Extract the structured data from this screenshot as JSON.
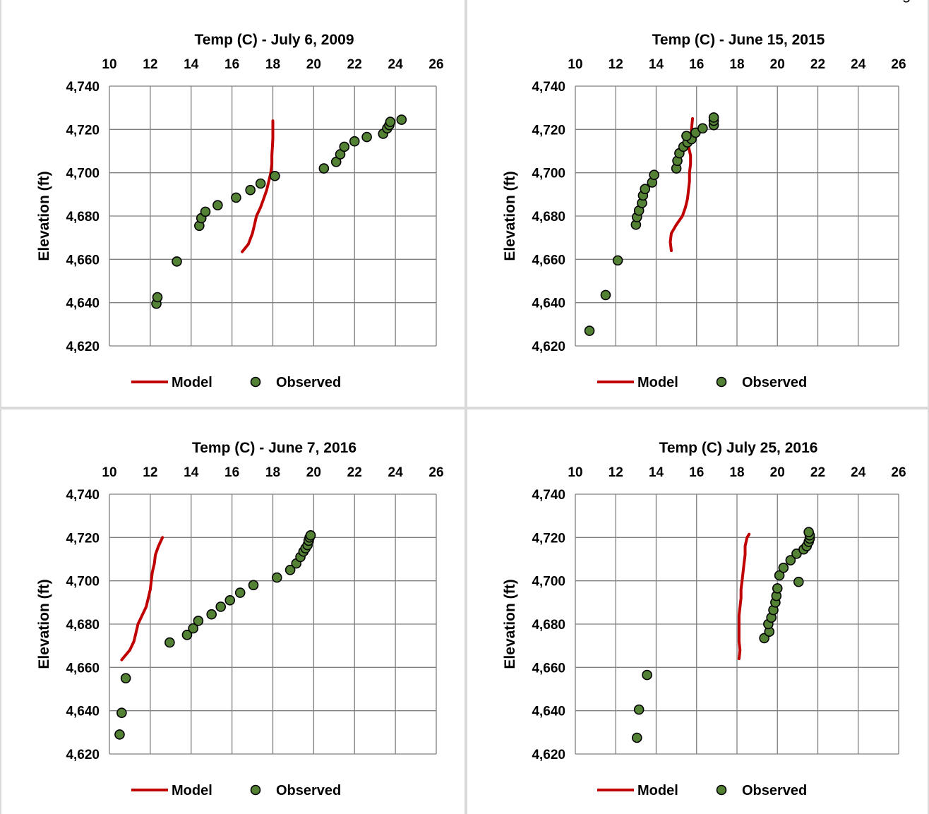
{
  "colors": {
    "model": "#c00000",
    "observed_fill": "#548235",
    "observed_stroke": "#000000",
    "grid": "#7f7f7f",
    "text": "#000000",
    "panel_border": "#d9d9d9"
  },
  "top_right_text": "g",
  "chart_data": [
    {
      "type": "scatter",
      "title": "Temp (C) - July 6, 2009",
      "xlabel": "",
      "ylabel": "Elevation (ft)",
      "xlim": [
        10,
        26
      ],
      "ylim": [
        4620,
        4740
      ],
      "x_ticks": [
        "10",
        "12",
        "14",
        "16",
        "18",
        "20",
        "22",
        "24",
        "26"
      ],
      "y_ticks": [
        "4,740",
        "4,720",
        "4,700",
        "4,680",
        "4,660",
        "4,640",
        "4,620"
      ],
      "x_axis_position": "top",
      "grid": true,
      "legend": [
        "Model",
        "Observed"
      ],
      "legend_position": "bottom",
      "series": [
        {
          "name": "Model",
          "kind": "line",
          "points": [
            [
              16.5,
              4663.5
            ],
            [
              16.8,
              4667
            ],
            [
              17.0,
              4672
            ],
            [
              17.1,
              4676
            ],
            [
              17.2,
              4680
            ],
            [
              17.4,
              4684
            ],
            [
              17.55,
              4688
            ],
            [
              17.7,
              4692
            ],
            [
              17.8,
              4696
            ],
            [
              17.9,
              4700
            ],
            [
              17.95,
              4704
            ],
            [
              17.95,
              4708
            ],
            [
              17.98,
              4712
            ],
            [
              18.0,
              4716
            ],
            [
              18.0,
              4720
            ],
            [
              18.0,
              4724
            ]
          ]
        },
        {
          "name": "Observed",
          "kind": "scatter",
          "points": [
            [
              12.3,
              4639.5
            ],
            [
              12.35,
              4642.5
            ],
            [
              13.3,
              4659
            ],
            [
              14.4,
              4675.5
            ],
            [
              14.5,
              4679
            ],
            [
              14.7,
              4682
            ],
            [
              15.3,
              4685
            ],
            [
              16.2,
              4688.5
            ],
            [
              16.9,
              4692
            ],
            [
              17.4,
              4695
            ],
            [
              18.1,
              4698.5
            ],
            [
              20.5,
              4702
            ],
            [
              21.1,
              4705
            ],
            [
              21.3,
              4708.5
            ],
            [
              21.5,
              4712
            ],
            [
              22.0,
              4714.5
            ],
            [
              22.6,
              4716.5
            ],
            [
              23.4,
              4718
            ],
            [
              23.6,
              4720.5
            ],
            [
              23.7,
              4722
            ],
            [
              23.75,
              4723.5
            ],
            [
              24.3,
              4724.5
            ]
          ]
        }
      ]
    },
    {
      "type": "scatter",
      "title": "Temp (C) - June 15, 2015",
      "xlabel": "",
      "ylabel": "Elevation (ft)",
      "xlim": [
        10,
        26
      ],
      "ylim": [
        4620,
        4740
      ],
      "x_ticks": [
        "10",
        "12",
        "14",
        "16",
        "18",
        "20",
        "22",
        "24",
        "26"
      ],
      "y_ticks": [
        "4,740",
        "4,720",
        "4,700",
        "4,680",
        "4,660",
        "4,640",
        "4,620"
      ],
      "x_axis_position": "top",
      "grid": true,
      "legend": [
        "Model",
        "Observed"
      ],
      "legend_position": "bottom",
      "series": [
        {
          "name": "Model",
          "kind": "line",
          "points": [
            [
              14.75,
              4664
            ],
            [
              14.7,
              4668
            ],
            [
              14.75,
              4672
            ],
            [
              15.0,
              4676
            ],
            [
              15.3,
              4680
            ],
            [
              15.45,
              4684
            ],
            [
              15.55,
              4688
            ],
            [
              15.6,
              4692
            ],
            [
              15.65,
              4696
            ],
            [
              15.65,
              4700
            ],
            [
              15.7,
              4704
            ],
            [
              15.7,
              4708
            ],
            [
              15.6,
              4712
            ],
            [
              15.7,
              4716
            ],
            [
              15.75,
              4720
            ],
            [
              15.8,
              4725
            ]
          ]
        },
        {
          "name": "Observed",
          "kind": "scatter",
          "points": [
            [
              10.7,
              4627
            ],
            [
              11.5,
              4643.5
            ],
            [
              12.1,
              4659.5
            ],
            [
              13.0,
              4676
            ],
            [
              13.05,
              4679.5
            ],
            [
              13.15,
              4682.5
            ],
            [
              13.3,
              4686
            ],
            [
              13.35,
              4689.5
            ],
            [
              13.45,
              4692.5
            ],
            [
              13.8,
              4695.5
            ],
            [
              13.9,
              4699
            ],
            [
              15.0,
              4702
            ],
            [
              15.05,
              4705.5
            ],
            [
              15.15,
              4709
            ],
            [
              15.35,
              4712
            ],
            [
              15.55,
              4714
            ],
            [
              15.75,
              4715.5
            ],
            [
              15.5,
              4717
            ],
            [
              15.95,
              4718.5
            ],
            [
              16.3,
              4720.5
            ],
            [
              16.85,
              4722
            ],
            [
              16.85,
              4724
            ],
            [
              16.85,
              4725.5
            ]
          ]
        }
      ]
    },
    {
      "type": "scatter",
      "title": "Temp (C) - June 7, 2016",
      "xlabel": "",
      "ylabel": "Elevation (ft)",
      "xlim": [
        10,
        26
      ],
      "ylim": [
        4620,
        4740
      ],
      "x_ticks": [
        "10",
        "12",
        "14",
        "16",
        "18",
        "20",
        "22",
        "24",
        "26"
      ],
      "y_ticks": [
        "4,740",
        "4,720",
        "4,700",
        "4,680",
        "4,660",
        "4,640",
        "4,620"
      ],
      "x_axis_position": "top",
      "grid": true,
      "legend": [
        "Model",
        "Observed"
      ],
      "legend_position": "bottom",
      "series": [
        {
          "name": "Model",
          "kind": "line",
          "points": [
            [
              10.6,
              4663.5
            ],
            [
              11.0,
              4668
            ],
            [
              11.2,
              4672
            ],
            [
              11.3,
              4676
            ],
            [
              11.4,
              4680
            ],
            [
              11.6,
              4684
            ],
            [
              11.8,
              4688
            ],
            [
              11.9,
              4692
            ],
            [
              12.0,
              4696
            ],
            [
              12.05,
              4700
            ],
            [
              12.1,
              4704
            ],
            [
              12.2,
              4708
            ],
            [
              12.25,
              4712
            ],
            [
              12.4,
              4716
            ],
            [
              12.6,
              4720
            ]
          ]
        },
        {
          "name": "Observed",
          "kind": "scatter",
          "points": [
            [
              10.5,
              4629
            ],
            [
              10.6,
              4639
            ],
            [
              10.8,
              4655
            ],
            [
              12.95,
              4671.5
            ],
            [
              13.8,
              4675
            ],
            [
              14.1,
              4678
            ],
            [
              14.35,
              4681.5
            ],
            [
              15.0,
              4684.5
            ],
            [
              15.45,
              4688
            ],
            [
              15.9,
              4691
            ],
            [
              16.4,
              4694.5
            ],
            [
              17.05,
              4698
            ],
            [
              18.2,
              4701.5
            ],
            [
              18.85,
              4705
            ],
            [
              19.15,
              4708
            ],
            [
              19.35,
              4711
            ],
            [
              19.5,
              4713.5
            ],
            [
              19.6,
              4715
            ],
            [
              19.7,
              4716.5
            ],
            [
              19.75,
              4718.5
            ],
            [
              19.8,
              4720
            ],
            [
              19.85,
              4721
            ]
          ]
        }
      ]
    },
    {
      "type": "scatter",
      "title": "Temp (C) July 25, 2016",
      "xlabel": "",
      "ylabel": "Elevation (ft)",
      "xlim": [
        10,
        26
      ],
      "ylim": [
        4620,
        4740
      ],
      "x_ticks": [
        "10",
        "12",
        "14",
        "16",
        "18",
        "20",
        "22",
        "24",
        "26"
      ],
      "y_ticks": [
        "4,740",
        "4,720",
        "4,700",
        "4,680",
        "4,660",
        "4,640",
        "4,620"
      ],
      "x_axis_position": "top",
      "grid": true,
      "legend": [
        "Model",
        "Observed"
      ],
      "legend_position": "bottom",
      "series": [
        {
          "name": "Model",
          "kind": "line",
          "points": [
            [
              18.1,
              4664
            ],
            [
              18.15,
              4668
            ],
            [
              18.1,
              4672
            ],
            [
              18.1,
              4676
            ],
            [
              18.1,
              4680
            ],
            [
              18.1,
              4684
            ],
            [
              18.15,
              4688
            ],
            [
              18.2,
              4692
            ],
            [
              18.2,
              4696
            ],
            [
              18.25,
              4700
            ],
            [
              18.3,
              4704
            ],
            [
              18.35,
              4708
            ],
            [
              18.4,
              4712
            ],
            [
              18.4,
              4716
            ],
            [
              18.5,
              4720
            ],
            [
              18.6,
              4721.5
            ]
          ]
        },
        {
          "name": "Observed",
          "kind": "scatter",
          "points": [
            [
              13.05,
              4627.5
            ],
            [
              13.15,
              4640.5
            ],
            [
              13.55,
              4656.5
            ],
            [
              19.35,
              4673.5
            ],
            [
              19.6,
              4676.5
            ],
            [
              19.55,
              4680
            ],
            [
              19.7,
              4683
            ],
            [
              19.8,
              4686.5
            ],
            [
              19.9,
              4690
            ],
            [
              19.95,
              4693
            ],
            [
              20.0,
              4696.5
            ],
            [
              21.05,
              4699.5
            ],
            [
              20.1,
              4702.5
            ],
            [
              20.3,
              4706
            ],
            [
              20.65,
              4709.5
            ],
            [
              20.95,
              4712.5
            ],
            [
              21.3,
              4714.5
            ],
            [
              21.45,
              4716
            ],
            [
              21.55,
              4718
            ],
            [
              21.6,
              4719.5
            ],
            [
              21.6,
              4721
            ],
            [
              21.55,
              4722.5
            ]
          ]
        }
      ]
    }
  ]
}
